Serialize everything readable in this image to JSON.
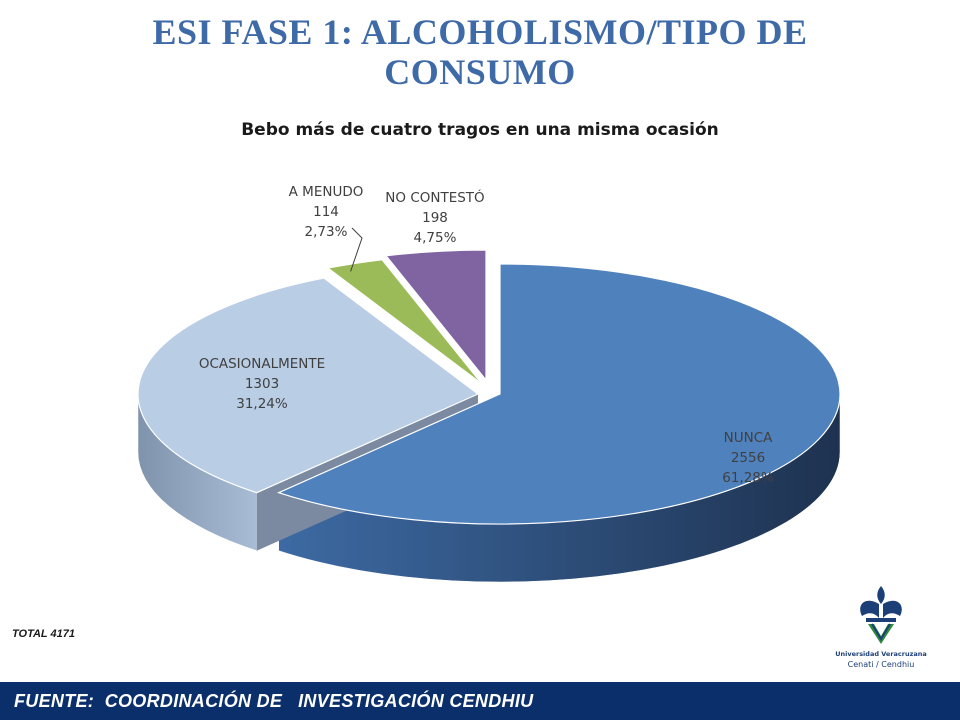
{
  "slide": {
    "title": "ESI FASE 1: ALCOHOLISMO/TIPO DE CONSUMO",
    "total": "TOTAL 4171",
    "footer": "FUENTE:  COORDINACIÓN DE   INVESTIGACIÓN CENDHIU"
  },
  "logo": {
    "line1": "Universidad Veracruzana",
    "line2": "Cenati / Cendhiu",
    "colors": {
      "blue": "#1d3f78",
      "green": "#2e8b3a"
    }
  },
  "chart_data": {
    "type": "pie",
    "style": "3d-exploded",
    "title": "Bebo más de cuatro tragos en una misma ocasión",
    "categories": [
      "NUNCA",
      "OCASIONALMENTE",
      "A MENUDO",
      "NO CONTESTÓ"
    ],
    "values": [
      2556,
      1303,
      114,
      198
    ],
    "labels": [
      {
        "name": "NUNCA",
        "count": "2556",
        "percent": "61,28%"
      },
      {
        "name": "OCASIONALMENTE",
        "count": "1303",
        "percent": "31,24%"
      },
      {
        "name": "A MENUDO",
        "count": "114",
        "percent": "2,73%"
      },
      {
        "name": "NO CONTESTÓ",
        "count": "198",
        "percent": "4,75%"
      }
    ],
    "colors": [
      "#4f81bd",
      "#b9cde5",
      "#9bbb59",
      "#8064a2"
    ],
    "side_colors": [
      "#2c4d75",
      "#8fa5c2",
      "#6f8a3c",
      "#5c4777"
    ],
    "legend": "none"
  }
}
